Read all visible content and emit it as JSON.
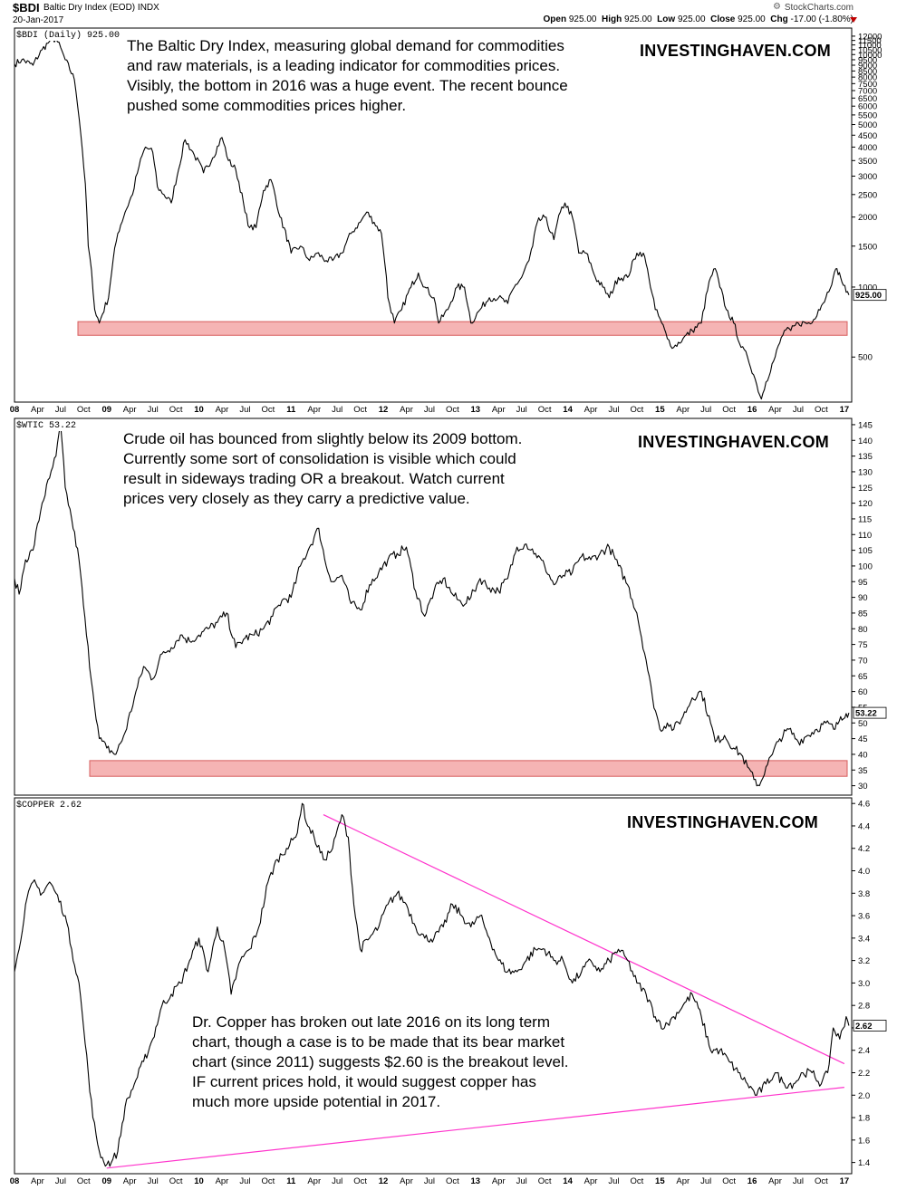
{
  "header": {
    "symbol": "$BDI",
    "name": "Baltic Dry Index (EOD)  INDX",
    "date": "20-Jan-2017",
    "logo": "StockCharts.com",
    "gear_icon": "gear-icon",
    "ohlc": {
      "open_label": "Open",
      "open": "925.00",
      "high_label": "High",
      "high": "925.00",
      "low_label": "Low",
      "low": "925.00",
      "close_label": "Close",
      "close": "925.00",
      "chg_label": "Chg",
      "chg": "-17.00 (-1.80%)"
    },
    "chg_color": "#c00000"
  },
  "colors": {
    "line": "#000000",
    "support_band_fill": "#f4a7a7",
    "support_band_stroke": "#d04040",
    "trendline": "#ff33cc",
    "grid": "#cccccc"
  },
  "panels": [
    {
      "label": "$BDI (Daily) 925.00",
      "last_value": "925.00",
      "brand": "INVESTINGHAVEN.COM",
      "annotation": [
        "The Baltic Dry Index, measuring global demand for commodities",
        "and raw materials, is a leading indicator for commodities prices.",
        "Visibly, the bottom in 2016 was a huge event. The recent bounce",
        "pushed some commodities prices higher."
      ]
    },
    {
      "label": "$WTIC 53.22",
      "last_value": "53.22",
      "brand": "INVESTINGHAVEN.COM",
      "annotation": [
        "Crude oil has bounced from slightly below its 2009 bottom.",
        "Currently some sort of consolidation is visible which could",
        "result in sideways trading OR a breakout. Watch current",
        "prices very closely as they carry a predictive value."
      ]
    },
    {
      "label": "$COPPER 2.62",
      "last_value": "2.62",
      "brand": "INVESTINGHAVEN.COM",
      "annotation": [
        "Dr. Copper has broken out late 2016 on its long term",
        "chart, though a case is to be made that its bear market",
        "chart (since 2011) suggests $2.60 is the breakout level.",
        "IF current prices hold, it would suggest copper has",
        "much more upside potential in 2017."
      ]
    }
  ],
  "chart_data": [
    {
      "type": "line",
      "title": "$BDI (Daily) 925.00",
      "scale": "log",
      "ylim": [
        320,
        13000
      ],
      "xlim": [
        2008.0,
        2017.08
      ],
      "y_ticks": [
        500,
        1000,
        1500,
        2000,
        2500,
        3000,
        3500,
        4000,
        4500,
        5000,
        5500,
        6000,
        6500,
        7000,
        7500,
        8000,
        8500,
        9000,
        9500,
        10000,
        10500,
        11000,
        11500,
        12000
      ],
      "x": [
        2008.0,
        2008.08,
        2008.2,
        2008.3,
        2008.38,
        2008.45,
        2008.55,
        2008.65,
        2008.72,
        2008.8,
        2008.87,
        2008.92,
        2009.02,
        2009.12,
        2009.2,
        2009.28,
        2009.35,
        2009.42,
        2009.5,
        2009.55,
        2009.62,
        2009.7,
        2009.78,
        2009.85,
        2009.95,
        2010.05,
        2010.15,
        2010.25,
        2010.32,
        2010.4,
        2010.5,
        2010.55,
        2010.62,
        2010.7,
        2010.78,
        2010.88,
        2011.0,
        2011.1,
        2011.2,
        2011.28,
        2011.38,
        2011.45,
        2011.55,
        2011.65,
        2011.75,
        2011.82,
        2011.9,
        2011.98,
        2012.05,
        2012.12,
        2012.2,
        2012.3,
        2012.38,
        2012.45,
        2012.55,
        2012.6,
        2012.7,
        2012.8,
        2012.88,
        2012.95,
        2013.05,
        2013.15,
        2013.25,
        2013.35,
        2013.42,
        2013.5,
        2013.58,
        2013.62,
        2013.67,
        2013.75,
        2013.85,
        2013.92,
        2013.97,
        2014.05,
        2014.12,
        2014.2,
        2014.3,
        2014.38,
        2014.45,
        2014.55,
        2014.65,
        2014.75,
        2014.82,
        2014.88,
        2014.95,
        2015.02,
        2015.08,
        2015.15,
        2015.25,
        2015.35,
        2015.45,
        2015.55,
        2015.6,
        2015.65,
        2015.72,
        2015.8,
        2015.88,
        2015.95,
        2016.05,
        2016.1,
        2016.15,
        2016.25,
        2016.35,
        2016.42,
        2016.5,
        2016.58,
        2016.65,
        2016.72,
        2016.8,
        2016.88,
        2016.92,
        2016.96,
        2017.02,
        2017.05
      ],
      "y": [
        9100,
        9500,
        9000,
        10500,
        11400,
        11700,
        9500,
        7800,
        4500,
        1500,
        800,
        700,
        900,
        1700,
        2100,
        2500,
        3300,
        4000,
        3800,
        2700,
        2500,
        2300,
        3200,
        4300,
        3700,
        3100,
        3600,
        4400,
        3500,
        3200,
        2100,
        1800,
        1800,
        2600,
        2900,
        2000,
        1400,
        1500,
        1300,
        1400,
        1300,
        1300,
        1400,
        1700,
        1900,
        2100,
        1900,
        1700,
        900,
        700,
        800,
        1000,
        1150,
        1000,
        900,
        700,
        800,
        1000,
        1000,
        700,
        800,
        900,
        900,
        850,
        1000,
        1100,
        1300,
        1500,
        1900,
        2000,
        1600,
        2100,
        2300,
        2000,
        1400,
        1400,
        1100,
        1000,
        900,
        1100,
        1100,
        1400,
        1400,
        1100,
        800,
        700,
        600,
        550,
        600,
        650,
        700,
        1100,
        1200,
        1000,
        800,
        700,
        550,
        500,
        380,
        330,
        390,
        500,
        650,
        650,
        700,
        700,
        700,
        800,
        900,
        1100,
        1200,
        1100,
        950,
        925
      ],
      "support_band": [
        620,
        710
      ]
    },
    {
      "type": "line",
      "title": "$WTIC 53.22",
      "ylim": [
        27,
        147
      ],
      "xlim": [
        2008.0,
        2017.08
      ],
      "y_ticks": [
        30,
        35,
        40,
        45,
        50,
        55,
        60,
        65,
        70,
        75,
        80,
        85,
        90,
        95,
        100,
        105,
        110,
        115,
        120,
        125,
        130,
        135,
        140,
        145
      ],
      "x": [
        2008.0,
        2008.05,
        2008.12,
        2008.2,
        2008.3,
        2008.38,
        2008.45,
        2008.5,
        2008.55,
        2008.62,
        2008.7,
        2008.78,
        2008.85,
        2008.92,
        2009.0,
        2009.1,
        2009.2,
        2009.3,
        2009.4,
        2009.5,
        2009.6,
        2009.7,
        2009.8,
        2009.9,
        2010.0,
        2010.1,
        2010.2,
        2010.3,
        2010.4,
        2010.5,
        2010.6,
        2010.7,
        2010.8,
        2010.9,
        2011.0,
        2011.1,
        2011.2,
        2011.3,
        2011.38,
        2011.45,
        2011.55,
        2011.65,
        2011.75,
        2011.85,
        2011.95,
        2012.05,
        2012.15,
        2012.25,
        2012.35,
        2012.45,
        2012.55,
        2012.65,
        2012.75,
        2012.85,
        2012.95,
        2013.05,
        2013.15,
        2013.25,
        2013.35,
        2013.45,
        2013.55,
        2013.65,
        2013.75,
        2013.85,
        2013.95,
        2014.05,
        2014.15,
        2014.25,
        2014.35,
        2014.45,
        2014.55,
        2014.65,
        2014.75,
        2014.85,
        2014.92,
        2015.0,
        2015.08,
        2015.15,
        2015.25,
        2015.35,
        2015.45,
        2015.55,
        2015.6,
        2015.7,
        2015.8,
        2015.88,
        2015.95,
        2016.02,
        2016.08,
        2016.15,
        2016.22,
        2016.3,
        2016.4,
        2016.5,
        2016.6,
        2016.7,
        2016.8,
        2016.9,
        2016.96,
        2017.02,
        2017.05
      ],
      "y": [
        96,
        91,
        102,
        105,
        120,
        128,
        135,
        145,
        125,
        115,
        102,
        78,
        60,
        45,
        42,
        40,
        47,
        58,
        68,
        64,
        72,
        74,
        78,
        76,
        78,
        80,
        82,
        85,
        74,
        77,
        78,
        80,
        84,
        89,
        90,
        100,
        106,
        112,
        100,
        95,
        97,
        88,
        86,
        94,
        98,
        102,
        104,
        106,
        92,
        84,
        92,
        96,
        91,
        88,
        90,
        96,
        93,
        92,
        96,
        106,
        107,
        104,
        100,
        94,
        97,
        98,
        103,
        102,
        104,
        106,
        100,
        94,
        85,
        70,
        58,
        48,
        50,
        48,
        52,
        58,
        60,
        50,
        44,
        46,
        42,
        40,
        36,
        32,
        30,
        36,
        40,
        45,
        48,
        44,
        46,
        48,
        50,
        48,
        52,
        53,
        53.22
      ],
      "support_band": [
        33,
        38
      ]
    },
    {
      "type": "line",
      "title": "$COPPER 2.62",
      "ylim": [
        1.3,
        4.65
      ],
      "xlim": [
        2008.0,
        2017.08
      ],
      "y_ticks": [
        1.4,
        1.6,
        1.8,
        2.0,
        2.2,
        2.4,
        2.6,
        2.8,
        3.0,
        3.2,
        3.4,
        3.6,
        3.8,
        4.0,
        4.2,
        4.4,
        4.6
      ],
      "x": [
        2008.0,
        2008.05,
        2008.12,
        2008.2,
        2008.3,
        2008.38,
        2008.45,
        2008.55,
        2008.62,
        2008.7,
        2008.75,
        2008.8,
        2008.85,
        2008.92,
        2008.97,
        2009.05,
        2009.12,
        2009.2,
        2009.3,
        2009.4,
        2009.5,
        2009.6,
        2009.7,
        2009.8,
        2009.9,
        2010.0,
        2010.1,
        2010.2,
        2010.28,
        2010.35,
        2010.45,
        2010.55,
        2010.65,
        2010.75,
        2010.85,
        2010.95,
        2011.05,
        2011.12,
        2011.18,
        2011.25,
        2011.35,
        2011.45,
        2011.55,
        2011.62,
        2011.68,
        2011.75,
        2011.85,
        2011.95,
        2012.05,
        2012.15,
        2012.25,
        2012.35,
        2012.45,
        2012.55,
        2012.65,
        2012.75,
        2012.85,
        2012.95,
        2013.05,
        2013.15,
        2013.25,
        2013.35,
        2013.45,
        2013.55,
        2013.65,
        2013.75,
        2013.85,
        2013.95,
        2014.05,
        2014.15,
        2014.25,
        2014.35,
        2014.45,
        2014.55,
        2014.65,
        2014.75,
        2014.85,
        2014.95,
        2015.05,
        2015.15,
        2015.25,
        2015.35,
        2015.45,
        2015.55,
        2015.65,
        2015.75,
        2015.85,
        2015.95,
        2016.05,
        2016.15,
        2016.25,
        2016.35,
        2016.45,
        2016.55,
        2016.65,
        2016.75,
        2016.82,
        2016.88,
        2016.95,
        2017.02,
        2017.05
      ],
      "y": [
        3.1,
        3.3,
        3.7,
        3.9,
        3.8,
        3.9,
        3.8,
        3.6,
        3.3,
        3.0,
        2.6,
        2.2,
        1.8,
        1.5,
        1.4,
        1.4,
        1.5,
        1.9,
        2.1,
        2.3,
        2.5,
        2.8,
        2.9,
        3.0,
        3.2,
        3.4,
        3.1,
        3.5,
        3.3,
        2.9,
        3.2,
        3.3,
        3.5,
        3.9,
        4.1,
        4.2,
        4.3,
        4.6,
        4.4,
        4.3,
        4.1,
        4.2,
        4.5,
        4.3,
        3.7,
        3.3,
        3.4,
        3.5,
        3.7,
        3.8,
        3.7,
        3.5,
        3.4,
        3.4,
        3.5,
        3.7,
        3.6,
        3.5,
        3.6,
        3.4,
        3.2,
        3.1,
        3.1,
        3.2,
        3.3,
        3.3,
        3.2,
        3.2,
        3.0,
        3.1,
        3.2,
        3.1,
        3.2,
        3.3,
        3.2,
        3.0,
        2.9,
        2.7,
        2.6,
        2.7,
        2.8,
        2.9,
        2.7,
        2.4,
        2.4,
        2.3,
        2.2,
        2.1,
        2.0,
        2.1,
        2.2,
        2.1,
        2.1,
        2.2,
        2.2,
        2.1,
        2.2,
        2.6,
        2.5,
        2.7,
        2.62
      ],
      "trendlines": [
        {
          "x": [
            2011.35,
            2017.0
          ],
          "y": [
            4.5,
            2.28
          ]
        },
        {
          "x": [
            2009.0,
            2017.0
          ],
          "y": [
            1.35,
            2.07
          ]
        }
      ]
    }
  ],
  "x_axis": {
    "ticks": [
      "08",
      "Apr",
      "Jul",
      "Oct",
      "09",
      "Apr",
      "Jul",
      "Oct",
      "10",
      "Apr",
      "Jul",
      "Oct",
      "11",
      "Apr",
      "Jul",
      "Oct",
      "12",
      "Apr",
      "Jul",
      "Oct",
      "13",
      "Apr",
      "Jul",
      "Oct",
      "14",
      "Apr",
      "Jul",
      "Oct",
      "15",
      "Apr",
      "Jul",
      "Oct",
      "16",
      "Apr",
      "Jul",
      "Oct",
      "17"
    ],
    "year_ticks": [
      "08",
      "09",
      "10",
      "11",
      "12",
      "13",
      "14",
      "15",
      "16",
      "17"
    ]
  }
}
